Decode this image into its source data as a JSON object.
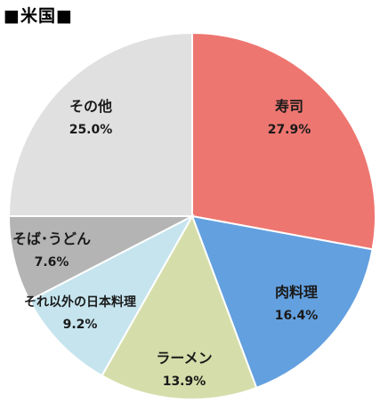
{
  "chart_data": {
    "type": "pie",
    "title": "■米国■",
    "slices": [
      {
        "name": "寿司",
        "value": 27.9,
        "label": "27.9%",
        "color": "#ee7670"
      },
      {
        "name": "肉料理",
        "value": 16.4,
        "label": "16.4%",
        "color": "#63a0df"
      },
      {
        "name": "ラーメン",
        "value": 13.9,
        "label": "13.9%",
        "color": "#d5deaa"
      },
      {
        "name": "それ以外の日本料理",
        "value": 9.2,
        "label": "9.2%",
        "color": "#c5e4ee"
      },
      {
        "name": "そば･うどん",
        "value": 7.6,
        "label": "7.6%",
        "color": "#b4b4b4"
      },
      {
        "name": "その他",
        "value": 25.0,
        "label": "25.0%",
        "color": "#e0e0e0"
      }
    ]
  }
}
